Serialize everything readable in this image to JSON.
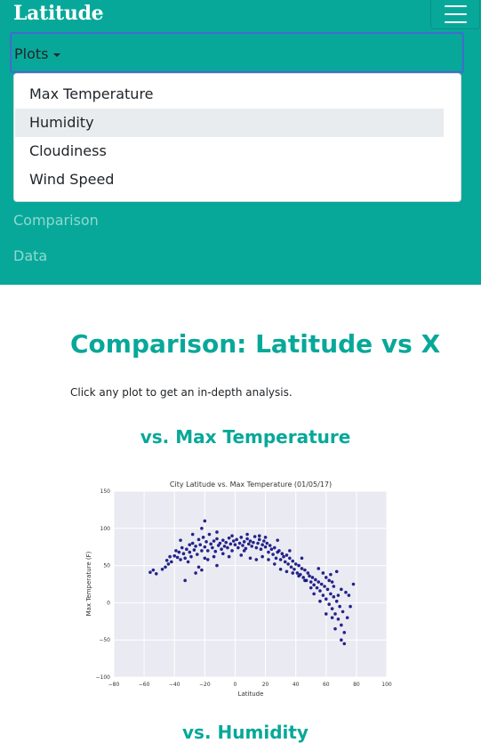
{
  "colors": {
    "accent": "#07a899",
    "focus": "#3f6ecb",
    "point": "#0d0d80"
  },
  "navbar": {
    "brand": "Latitude",
    "toggler_icon": "hamburger-icon",
    "plots_label": "Plots",
    "dropdown": [
      {
        "label": "Max Temperature",
        "active": false
      },
      {
        "label": "Humidity",
        "active": true
      },
      {
        "label": "Cloudiness",
        "active": false
      },
      {
        "label": "Wind Speed",
        "active": false
      }
    ],
    "links": [
      {
        "label": "Comparison"
      },
      {
        "label": "Data"
      }
    ]
  },
  "main": {
    "title": "Comparison: Latitude vs X",
    "intro": "Click any plot to get an in-depth analysis.",
    "section_titles": [
      "vs. Max Temperature",
      "vs. Humidity"
    ]
  },
  "chart_data": {
    "type": "scatter",
    "title": "City Latitude vs. Max Temperature (01/05/17)",
    "xlabel": "Latitude",
    "ylabel": "Max Temperature (F)",
    "xlim": [
      -80,
      100
    ],
    "ylim": [
      -100,
      150
    ],
    "xticks": [
      -80,
      -60,
      -40,
      -20,
      0,
      20,
      40,
      60,
      80,
      100
    ],
    "yticks": [
      -100,
      -50,
      0,
      50,
      100,
      150
    ],
    "grid": true,
    "points": [
      [
        -56,
        41
      ],
      [
        -54,
        44
      ],
      [
        -52,
        39
      ],
      [
        -46,
        48
      ],
      [
        -45,
        57
      ],
      [
        -43,
        62
      ],
      [
        -42,
        55
      ],
      [
        -40,
        63
      ],
      [
        -39,
        70
      ],
      [
        -38,
        61
      ],
      [
        -37,
        68
      ],
      [
        -36,
        58
      ],
      [
        -35,
        74
      ],
      [
        -34,
        66
      ],
      [
        -33,
        60
      ],
      [
        -32,
        72
      ],
      [
        -31,
        55
      ],
      [
        -30,
        78
      ],
      [
        -30,
        68
      ],
      [
        -29,
        62
      ],
      [
        -28,
        80
      ],
      [
        -27,
        71
      ],
      [
        -26,
        76
      ],
      [
        -25,
        65
      ],
      [
        -24,
        85
      ],
      [
        -23,
        78
      ],
      [
        -22,
        70
      ],
      [
        -21,
        88
      ],
      [
        -20,
        75
      ],
      [
        -20,
        60
      ],
      [
        -19,
        82
      ],
      [
        -18,
        70
      ],
      [
        -17,
        92
      ],
      [
        -16,
        79
      ],
      [
        -15,
        74
      ],
      [
        -14,
        83
      ],
      [
        -13,
        69
      ],
      [
        -12,
        86
      ],
      [
        -11,
        77
      ],
      [
        -10,
        80
      ],
      [
        -9,
        72
      ],
      [
        -8,
        84
      ],
      [
        -7,
        76
      ],
      [
        -6,
        81
      ],
      [
        -5,
        74
      ],
      [
        -4,
        87
      ],
      [
        -3,
        79
      ],
      [
        -2,
        70
      ],
      [
        -1,
        83
      ],
      [
        0,
        78
      ],
      [
        1,
        85
      ],
      [
        2,
        74
      ],
      [
        3,
        80
      ],
      [
        4,
        88
      ],
      [
        5,
        77
      ],
      [
        6,
        82
      ],
      [
        7,
        73
      ],
      [
        8,
        86
      ],
      [
        9,
        79
      ],
      [
        10,
        83
      ],
      [
        11,
        76
      ],
      [
        12,
        81
      ],
      [
        13,
        89
      ],
      [
        14,
        74
      ],
      [
        15,
        80
      ],
      [
        16,
        85
      ],
      [
        17,
        72
      ],
      [
        18,
        78
      ],
      [
        19,
        83
      ],
      [
        20,
        75
      ],
      [
        21,
        80
      ],
      [
        22,
        68
      ],
      [
        23,
        77
      ],
      [
        24,
        72
      ],
      [
        25,
        65
      ],
      [
        26,
        74
      ],
      [
        27,
        60
      ],
      [
        28,
        68
      ],
      [
        29,
        70
      ],
      [
        30,
        58
      ],
      [
        31,
        66
      ],
      [
        32,
        62
      ],
      [
        33,
        55
      ],
      [
        34,
        64
      ],
      [
        35,
        52
      ],
      [
        36,
        60
      ],
      [
        37,
        48
      ],
      [
        38,
        56
      ],
      [
        39,
        45
      ],
      [
        40,
        52
      ],
      [
        41,
        40
      ],
      [
        42,
        50
      ],
      [
        43,
        38
      ],
      [
        44,
        46
      ],
      [
        45,
        34
      ],
      [
        46,
        44
      ],
      [
        47,
        30
      ],
      [
        48,
        40
      ],
      [
        49,
        36
      ],
      [
        50,
        28
      ],
      [
        51,
        34
      ],
      [
        52,
        24
      ],
      [
        53,
        31
      ],
      [
        54,
        20
      ],
      [
        55,
        28
      ],
      [
        56,
        16
      ],
      [
        57,
        25
      ],
      [
        58,
        10
      ],
      [
        59,
        22
      ],
      [
        60,
        5
      ],
      [
        61,
        18
      ],
      [
        62,
        -2
      ],
      [
        63,
        12
      ],
      [
        64,
        -8
      ],
      [
        65,
        8
      ],
      [
        66,
        -15
      ],
      [
        67,
        2
      ],
      [
        68,
        -22
      ],
      [
        69,
        -5
      ],
      [
        70,
        -30
      ],
      [
        71,
        -12
      ],
      [
        72,
        -40
      ],
      [
        62,
        30
      ],
      [
        65,
        22
      ],
      [
        68,
        10
      ],
      [
        70,
        -50
      ],
      [
        72,
        -55
      ],
      [
        66,
        -35
      ],
      [
        74,
        -20
      ],
      [
        76,
        -5
      ],
      [
        78,
        25
      ],
      [
        67,
        42
      ],
      [
        63,
        38
      ],
      [
        58,
        40
      ],
      [
        55,
        46
      ],
      [
        60,
        34
      ],
      [
        64,
        28
      ],
      [
        70,
        18
      ],
      [
        73,
        14
      ],
      [
        75,
        10
      ],
      [
        -48,
        45
      ],
      [
        -44,
        52
      ],
      [
        -26,
        40
      ],
      [
        -24,
        48
      ],
      [
        -18,
        58
      ],
      [
        -14,
        62
      ],
      [
        -8,
        66
      ],
      [
        -4,
        62
      ],
      [
        4,
        64
      ],
      [
        10,
        60
      ],
      [
        14,
        58
      ],
      [
        18,
        62
      ],
      [
        22,
        58
      ],
      [
        26,
        52
      ],
      [
        30,
        45
      ],
      [
        34,
        42
      ],
      [
        38,
        40
      ],
      [
        42,
        36
      ],
      [
        46,
        30
      ],
      [
        50,
        20
      ],
      [
        -33,
        30
      ],
      [
        -22,
        44
      ],
      [
        -12,
        50
      ],
      [
        6,
        70
      ],
      [
        36,
        70
      ],
      [
        44,
        60
      ],
      [
        52,
        12
      ],
      [
        56,
        2
      ],
      [
        60,
        -15
      ],
      [
        64,
        -20
      ],
      [
        -36,
        84
      ],
      [
        -28,
        92
      ],
      [
        -22,
        100
      ],
      [
        -20,
        110
      ],
      [
        -12,
        95
      ],
      [
        -2,
        90
      ],
      [
        8,
        92
      ],
      [
        16,
        90
      ],
      [
        20,
        88
      ],
      [
        28,
        84
      ]
    ]
  }
}
